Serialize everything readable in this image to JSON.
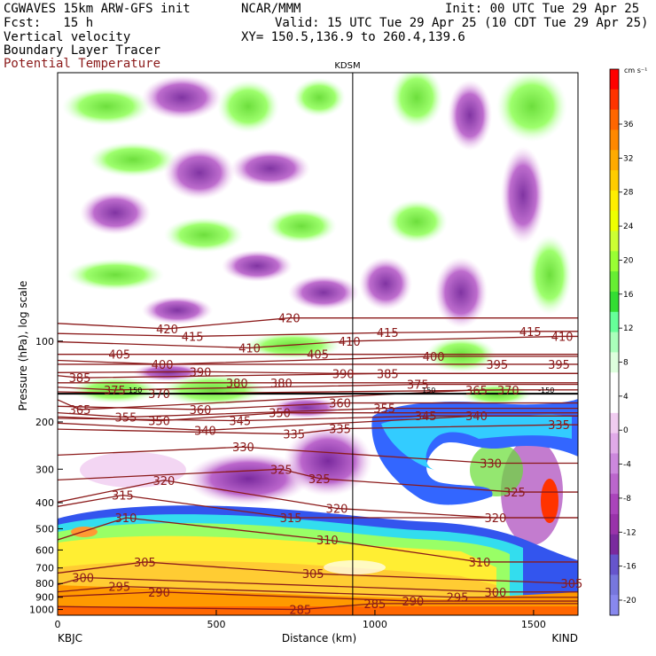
{
  "header": {
    "model": "CGWAVES 15km ARW-GFS init",
    "center": "NCAR/MMM",
    "init": "Init: 00 UTC Tue 29 Apr 25",
    "fcst": "Fcst:   15 h",
    "valid": "Valid: 15 UTC Tue 29 Apr 25 (10 CDT Tue 29 Apr 25)",
    "field1": "Vertical velocity",
    "xy": "XY= 150.5,136.9 to 260.4,139.6",
    "field2": "Boundary Layer Tracer",
    "field3": "Potential Temperature",
    "field3_color": "#8b1a1a"
  },
  "chart_data": {
    "type": "heatmap",
    "title": "Vertical velocity / Boundary Layer Tracer / Potential Temperature",
    "xlabel": "Distance (km)",
    "ylabel": "Pressure (hPa), log scale",
    "x_ticks": [
      "0",
      "500",
      "1000",
      "1500"
    ],
    "x_range": [
      0,
      1640
    ],
    "y_ticks": [
      "100",
      "200",
      "300",
      "400",
      "500",
      "600",
      "700",
      "800",
      "900",
      "1000"
    ],
    "y_scale": "log",
    "y_range": [
      1050,
      10
    ],
    "station_top": "KDSM",
    "station_left": "KBJC",
    "station_right": "KIND",
    "marker_distance_km": 930,
    "colorbar": {
      "unit": "cm s⁻¹",
      "labels": [
        "36",
        "32",
        "28",
        "24",
        "20",
        "16",
        "12",
        "8",
        "4",
        "0",
        "-4",
        "-8",
        "-12",
        "-16",
        "-20"
      ],
      "colors": [
        "#ff0000",
        "#ff3300",
        "#ff6600",
        "#ff8800",
        "#ffaa00",
        "#ffcc00",
        "#ffee00",
        "#eeff00",
        "#ccff33",
        "#99ff33",
        "#66ee33",
        "#33dd33",
        "#66ff99",
        "#aaffbb",
        "#ddffdd",
        "#ffffff",
        "#ffffff",
        "#f0ccf0",
        "#e0aae8",
        "#cc88dd",
        "#bb66cc",
        "#aa44bb",
        "#9933aa",
        "#7a2a9e",
        "#6655cc",
        "#7777dd",
        "#8888ee"
      ]
    },
    "theta_contours": [
      {
        "value": "420",
        "label_x_km": 345,
        "p": 90
      },
      {
        "value": "420",
        "label_x_km": 730,
        "p": 82
      },
      {
        "value": "415",
        "label_x_km": 425,
        "p": 96
      },
      {
        "value": "415",
        "label_x_km": 1040,
        "p": 93
      },
      {
        "value": "415",
        "label_x_km": 1490,
        "p": 92
      },
      {
        "value": "410",
        "label_x_km": 605,
        "p": 106
      },
      {
        "value": "410",
        "label_x_km": 920,
        "p": 100
      },
      {
        "value": "410",
        "label_x_km": 1590,
        "p": 96
      },
      {
        "value": "405",
        "label_x_km": 195,
        "p": 112
      },
      {
        "value": "405",
        "label_x_km": 820,
        "p": 112
      },
      {
        "value": "400",
        "label_x_km": 330,
        "p": 122
      },
      {
        "value": "400",
        "label_x_km": 1185,
        "p": 114
      },
      {
        "value": "395",
        "label_x_km": 1385,
        "p": 122
      },
      {
        "value": "395",
        "label_x_km": 1580,
        "p": 122
      },
      {
        "value": "390",
        "label_x_km": 450,
        "p": 130
      },
      {
        "value": "390",
        "label_x_km": 900,
        "p": 132
      },
      {
        "value": "385",
        "label_x_km": 70,
        "p": 137
      },
      {
        "value": "385",
        "label_x_km": 1040,
        "p": 132
      },
      {
        "value": "380",
        "label_x_km": 565,
        "p": 143
      },
      {
        "value": "380",
        "label_x_km": 705,
        "p": 143
      },
      {
        "value": "375",
        "label_x_km": 180,
        "p": 152
      },
      {
        "value": "375",
        "label_x_km": 1135,
        "p": 145
      },
      {
        "value": "370",
        "label_x_km": 320,
        "p": 157
      },
      {
        "value": "370",
        "label_x_km": 1420,
        "p": 152
      },
      {
        "value": "365",
        "label_x_km": 70,
        "p": 180
      },
      {
        "value": "365",
        "label_x_km": 1320,
        "p": 152
      },
      {
        "value": "360",
        "label_x_km": 450,
        "p": 180
      },
      {
        "value": "360",
        "label_x_km": 890,
        "p": 170
      },
      {
        "value": "355",
        "label_x_km": 215,
        "p": 192
      },
      {
        "value": "355",
        "label_x_km": 1030,
        "p": 178
      },
      {
        "value": "350",
        "label_x_km": 320,
        "p": 198
      },
      {
        "value": "350",
        "label_x_km": 700,
        "p": 185
      },
      {
        "value": "345",
        "label_x_km": 575,
        "p": 198
      },
      {
        "value": "345",
        "label_x_km": 1160,
        "p": 190
      },
      {
        "value": "340",
        "label_x_km": 465,
        "p": 215
      },
      {
        "value": "340",
        "label_x_km": 1320,
        "p": 190
      },
      {
        "value": "335",
        "label_x_km": 745,
        "p": 222
      },
      {
        "value": "335",
        "label_x_km": 890,
        "p": 212
      },
      {
        "value": "335",
        "label_x_km": 1580,
        "p": 205
      },
      {
        "value": "330",
        "label_x_km": 585,
        "p": 248
      },
      {
        "value": "330",
        "label_x_km": 1365,
        "p": 285
      },
      {
        "value": "325",
        "label_x_km": 705,
        "p": 300
      },
      {
        "value": "325",
        "label_x_km": 825,
        "p": 325
      },
      {
        "value": "325",
        "label_x_km": 1440,
        "p": 365
      },
      {
        "value": "320",
        "label_x_km": 335,
        "p": 330
      },
      {
        "value": "320",
        "label_x_km": 880,
        "p": 420
      },
      {
        "value": "320",
        "label_x_km": 1380,
        "p": 455
      },
      {
        "value": "315",
        "label_x_km": 205,
        "p": 375
      },
      {
        "value": "315",
        "label_x_km": 735,
        "p": 455
      },
      {
        "value": "310",
        "label_x_km": 215,
        "p": 455
      },
      {
        "value": "310",
        "label_x_km": 850,
        "p": 550
      },
      {
        "value": "310",
        "label_x_km": 1330,
        "p": 665
      },
      {
        "value": "305",
        "label_x_km": 275,
        "p": 665
      },
      {
        "value": "305",
        "label_x_km": 805,
        "p": 735
      },
      {
        "value": "305",
        "label_x_km": 1620,
        "p": 800
      },
      {
        "value": "300",
        "label_x_km": 80,
        "p": 760
      },
      {
        "value": "300",
        "label_x_km": 1380,
        "p": 860
      },
      {
        "value": "295",
        "label_x_km": 195,
        "p": 820
      },
      {
        "value": "295",
        "label_x_km": 1260,
        "p": 900
      },
      {
        "value": "290",
        "label_x_km": 320,
        "p": 860
      },
      {
        "value": "290",
        "label_x_km": 1120,
        "p": 930
      },
      {
        "value": "285",
        "label_x_km": 765,
        "p": 1000
      },
      {
        "value": "285",
        "label_x_km": 1000,
        "p": 950
      }
    ],
    "small_labels": [
      {
        "text": "150",
        "x_km": 245,
        "p": 152
      },
      {
        "text": "150",
        "x_km": 1170,
        "p": 152
      },
      {
        "text": "-150",
        "x_km": 1540,
        "p": 152
      }
    ]
  }
}
